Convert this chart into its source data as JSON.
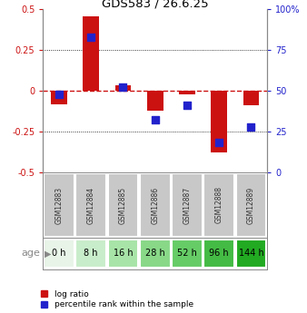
{
  "title": "GDS583 / 26.6.25",
  "gsm_labels": [
    "GSM12883",
    "GSM12884",
    "GSM12885",
    "GSM12886",
    "GSM12887",
    "GSM12888",
    "GSM12889"
  ],
  "age_labels": [
    "0 h",
    "8 h",
    "16 h",
    "28 h",
    "52 h",
    "96 h",
    "144 h"
  ],
  "log_ratios": [
    -0.085,
    0.455,
    0.035,
    -0.125,
    -0.02,
    -0.38,
    -0.09
  ],
  "percentile_ranks": [
    48,
    83,
    52,
    32,
    41,
    18,
    28
  ],
  "bar_color": "#cc1111",
  "dot_color": "#2222cc",
  "ylim_left": [
    -0.5,
    0.5
  ],
  "ylim_right": [
    0,
    100
  ],
  "yticks_left": [
    -0.5,
    -0.25,
    0.0,
    0.25,
    0.5
  ],
  "yticks_right": [
    0,
    25,
    50,
    75,
    100
  ],
  "ytick_labels_left": [
    "-0.5",
    "-0.25",
    "0",
    "0.25",
    "0.5"
  ],
  "ytick_labels_right": [
    "0",
    "25",
    "50",
    "75",
    "100%"
  ],
  "zero_line_color": "#cc1111",
  "grid_color": "#000000",
  "age_bg_colors": [
    "#e8f4e8",
    "#c8edca",
    "#a8e4a8",
    "#88d888",
    "#66cc66",
    "#44bb44",
    "#22aa22"
  ],
  "gsm_bg_color": "#c8c8c8",
  "legend_bar_label": "log ratio",
  "legend_dot_label": "percentile rank within the sample",
  "bar_width": 0.5,
  "dot_size": 35
}
